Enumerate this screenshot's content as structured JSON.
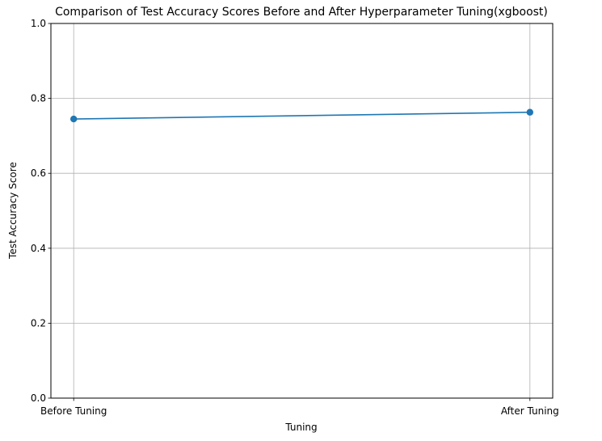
{
  "chart_data": {
    "type": "line",
    "title": "Comparison of Test Accuracy Scores Before and After Hyperparameter Tuning(xgboost)",
    "xlabel": "Tuning",
    "ylabel": "Test Accuracy Score",
    "categories": [
      "Before Tuning",
      "After Tuning"
    ],
    "series": [
      {
        "values": [
          0.745,
          0.763
        ]
      }
    ],
    "ylim": [
      0,
      1
    ],
    "yticks": [
      "0.0",
      "0.2",
      "0.4",
      "0.6",
      "0.8",
      "1.0"
    ],
    "grid": true,
    "marker": "circle",
    "color": "#1f77b4",
    "grid_color": "#b0b0b0"
  }
}
